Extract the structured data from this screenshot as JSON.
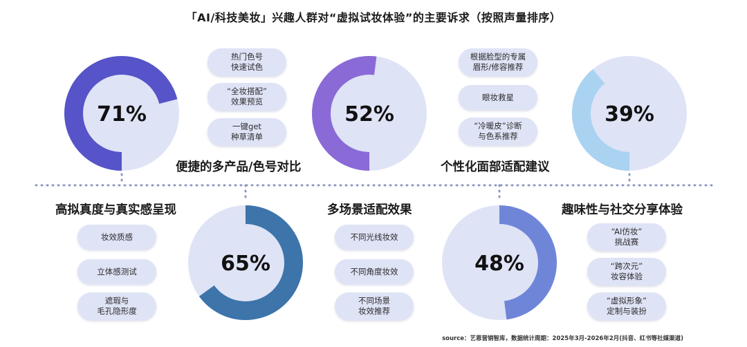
{
  "title": "「AI/科技美妆」兴趣人群对“虚拟试妆体验”的主要诉求（按照声量排序）",
  "source": "source：艺恩营销智库，数据统计周期：2025年3月-2026年2月(抖音、红书等社媒渠道)",
  "colors": {
    "divider": "#8d97c2",
    "ring_track": "#dfe3f6",
    "inner_circle": "#dfe3f6",
    "pill_bg": "#dfe3f6"
  },
  "chart_data": {
    "type": "donut",
    "unit": "%",
    "items": [
      {
        "label": "便捷的多产品/色号对比",
        "value": 71,
        "value_label": "71%",
        "color": "#5654c8",
        "tags": [
          "热门色号\n快速试色",
          "“全妆搭配”\n效果预览",
          "一键get\n种草清单"
        ]
      },
      {
        "label": "个性化面部适配建议",
        "value": 52,
        "value_label": "52%",
        "color": "#8a6ad6",
        "tags": [
          "根据脸型的专属\n眉形/修容推荐",
          "眼妆救星",
          "“冷暖皮”诊断\n与色系推荐"
        ]
      },
      {
        "label": "",
        "value": 39,
        "value_label": "39%",
        "color": "#a9d3f1",
        "tags": []
      },
      {
        "label": "高拟真度与真实感呈现",
        "value": 65,
        "value_label": "65%",
        "color": "#3d74aa",
        "tags": [
          "妆效质感",
          "立体感测试",
          "遮瑕与\n毛孔隐形度"
        ]
      },
      {
        "label": "多场景适配效果",
        "value": 48,
        "value_label": "48%",
        "color": "#6f86d8",
        "tags": [
          "不同光线妆效",
          "不同角度妆效",
          "不同场景\n妆效推荐"
        ]
      },
      {
        "label": "趣味性与社交分享体验",
        "value": 39,
        "value_label": "",
        "color": "#a9d3f1",
        "tags": [
          "“AI仿妆”\n挑战赛",
          "“跨次元”\n妆容体验",
          "“虚拟形象”\n定制与装扮"
        ]
      }
    ]
  }
}
